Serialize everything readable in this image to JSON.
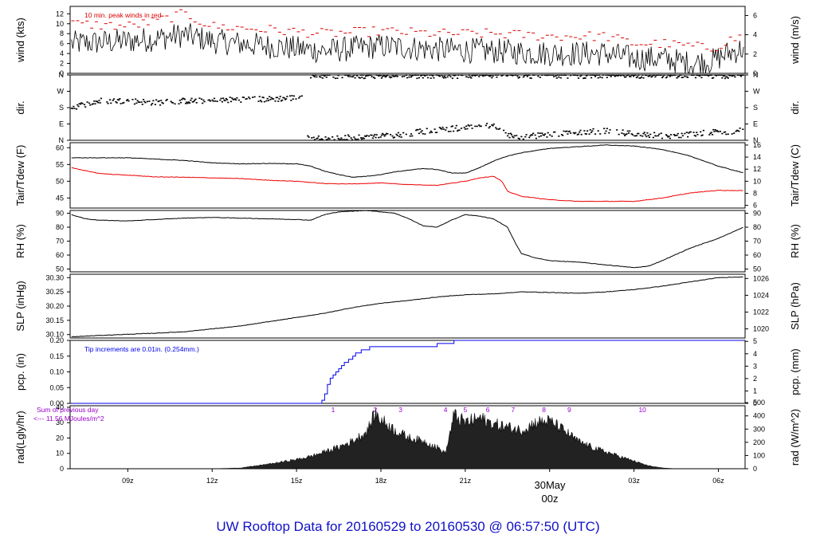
{
  "title": "UW Rooftop Data for 20160529  to  20160530 @ 06:57:50  (UTC)",
  "colors": {
    "title": "#1010c8",
    "peak": "#dd0000",
    "dew": "#ee0000",
    "precip": "#0000ee",
    "annotation": "#9900cc",
    "date": "#dd0000",
    "line": "#000000"
  },
  "chart_data": {
    "type": "line",
    "x_unit": "UTC hour",
    "x_range": [
      6.95,
      30.95
    ],
    "x_ticks": [
      {
        "x": 9,
        "label": "09z"
      },
      {
        "x": 12,
        "label": "12z"
      },
      {
        "x": 15,
        "label": "15z"
      },
      {
        "x": 18,
        "label": "18z"
      },
      {
        "x": 21,
        "label": "21z"
      },
      {
        "x": 24,
        "label": "30May"
      },
      {
        "x": 27,
        "label": "03z"
      },
      {
        "x": 30,
        "label": "06z"
      }
    ],
    "date_line1": "30May",
    "date_line2": "00z",
    "panels": [
      {
        "key": "wind",
        "left_label": "wind (kts)",
        "right_label": "wind (m/s)",
        "ylim": [
          0,
          13.5
        ],
        "left_ticks": [
          "0",
          "2",
          "4",
          "6",
          "8",
          "10",
          "12"
        ],
        "left_tick_values": [
          0,
          2,
          4,
          6,
          8,
          10,
          12
        ],
        "right_ticks": [
          "0",
          "2",
          "4",
          "6"
        ],
        "right_tick_values": [
          0,
          3.89,
          7.78,
          11.66
        ],
        "annotation": "10 min. peak winds in red",
        "series": [
          {
            "name": "wind speed",
            "kind": "noise",
            "x": [
              7,
              9,
              10,
              11,
              12,
              14,
              16,
              18,
              20,
              22,
              24,
              26,
              27,
              28,
              29,
              29.8,
              30.3,
              30.9
            ],
            "y": [
              6,
              6.5,
              7,
              7.8,
              6.5,
              5.5,
              4.5,
              5.5,
              4.8,
              4.5,
              4,
              4,
              3,
              3,
              2,
              2.5,
              4,
              5
            ]
          },
          {
            "name": "10 min peak",
            "kind": "peaks",
            "x": [
              7,
              9,
              10,
              11,
              12,
              14,
              16,
              18,
              20,
              22,
              24,
              26,
              27,
              28,
              29,
              29.8,
              30.3,
              30.9
            ],
            "y": [
              10,
              9.5,
              10.5,
              12,
              9.5,
              8.8,
              8,
              8.5,
              8,
              8,
              7.5,
              7.5,
              6,
              6,
              5.5,
              5,
              6.5,
              7.5
            ]
          }
        ]
      },
      {
        "key": "dir",
        "left_label": "dir.",
        "right_label": "dir.",
        "ylim": [
          0,
          4
        ],
        "left_ticks": [
          "N",
          "E",
          "S",
          "W",
          "N"
        ],
        "left_tick_values": [
          0,
          1,
          2,
          3,
          4
        ],
        "right_ticks": [
          "N",
          "E",
          "S",
          "W",
          "N"
        ],
        "right_tick_values": [
          0,
          1,
          2,
          3,
          4
        ],
        "series": [
          {
            "name": "direction",
            "kind": "dots",
            "x": [
              7,
              8,
              9,
              10,
              11,
              12,
              13,
              14,
              15,
              15.2,
              15.3,
              16,
              17,
              18,
              19,
              20,
              21,
              22,
              22.5,
              23,
              24,
              25,
              26,
              27,
              28,
              29,
              30,
              30.9
            ],
            "y": [
              2,
              2.4,
              2.4,
              2.3,
              2.4,
              2.4,
              2.5,
              2.5,
              2.6,
              2.7,
              3.95,
              3.95,
              3.95,
              3.95,
              3.95,
              3.95,
              3.95,
              3.95,
              3.95,
              3.95,
              3.95,
              3.95,
              3.95,
              3.95,
              3.95,
              3.95,
              3.95,
              3.95
            ],
            "lower_x": [
              15.4,
              16,
              17,
              18,
              19,
              20,
              21,
              22,
              22.5,
              23,
              24,
              25,
              26,
              27,
              28,
              29,
              30,
              30.9
            ],
            "lower_y": [
              0.1,
              0.1,
              0.15,
              0.25,
              0.4,
              0.65,
              0.75,
              0.95,
              0.3,
              0.2,
              0.3,
              0.5,
              0.55,
              0.4,
              0.25,
              0.35,
              0.5,
              0.6
            ]
          }
        ]
      },
      {
        "key": "temp",
        "left_label": "Tair/Tdew (F)",
        "right_label": "Tair/Tdew (C)",
        "ylim": [
          42,
          61.5
        ],
        "left_ticks": [
          "45",
          "50",
          "55",
          "60"
        ],
        "left_tick_values": [
          45,
          50,
          55,
          60
        ],
        "right_ticks": [
          "6",
          "8",
          "10",
          "12",
          "14",
          "16"
        ],
        "right_tick_values": [
          42.8,
          46.4,
          50,
          53.6,
          57.2,
          60.8
        ],
        "series": [
          {
            "name": "Tair",
            "color": "#000000",
            "x": [
              7,
              9,
              11,
              12,
              13,
              14,
              15,
              15.5,
              16,
              16.5,
              17,
              17.5,
              18,
              18.5,
              19,
              19.5,
              20,
              20.5,
              21,
              21.5,
              22,
              22.5,
              23,
              24,
              25,
              26,
              27,
              28,
              29,
              29.5,
              30,
              30.9
            ],
            "y": [
              57,
              57,
              56.2,
              55.5,
              55.2,
              55.3,
              55.2,
              54.5,
              53,
              52,
              51.2,
              51.5,
              52,
              52.8,
              53.3,
              53.8,
              53.5,
              52.5,
              52.4,
              54,
              56,
              57.5,
              58.5,
              59.8,
              60.3,
              60.8,
              60.5,
              59.5,
              57.5,
              56,
              54.5,
              52.5
            ]
          },
          {
            "name": "Tdew",
            "color": "#ee0000",
            "x": [
              7,
              8,
              9,
              10,
              11,
              12,
              13,
              14,
              15,
              16,
              17,
              18,
              19,
              20,
              21,
              21.5,
              22,
              22.3,
              22.5,
              23,
              24,
              25,
              26,
              27,
              28,
              29,
              30,
              30.9
            ],
            "y": [
              54,
              52.3,
              51.8,
              51.3,
              51.2,
              51,
              50.8,
              50.3,
              50,
              49.3,
              49.2,
              49.5,
              49,
              48.8,
              50,
              51,
              51.5,
              50,
              47,
              45.5,
              44.5,
              44,
              44,
              44,
              45,
              46.5,
              47.3,
              47.2
            ]
          }
        ]
      },
      {
        "key": "rh",
        "left_label": "RH (%)",
        "right_label": "RH (%)",
        "ylim": [
          48,
          92
        ],
        "left_ticks": [
          "50",
          "60",
          "70",
          "80",
          "90"
        ],
        "left_tick_values": [
          50,
          60,
          70,
          80,
          90
        ],
        "right_ticks": [
          "50",
          "60",
          "70",
          "80",
          "90"
        ],
        "right_tick_values": [
          50,
          60,
          70,
          80,
          90
        ],
        "series": [
          {
            "name": "RH",
            "color": "#000000",
            "x": [
              7,
              7.5,
              8,
              9,
              10,
              11,
              12,
              13,
              14,
              15,
              15.5,
              16,
              16.5,
              17,
              17.5,
              18,
              18.5,
              19,
              19.5,
              20,
              20.5,
              21,
              21.5,
              22,
              22.5,
              22.8,
              23,
              23.5,
              24,
              25,
              26,
              27,
              27.5,
              28,
              29,
              30,
              30.9
            ],
            "y": [
              89,
              86,
              85,
              84.5,
              85.5,
              86.5,
              87,
              86.5,
              86,
              85.5,
              85,
              89,
              91,
              91.5,
              92,
              91,
              90,
              86,
              81,
              80,
              85,
              89,
              88,
              86,
              80,
              68,
              61,
              58,
              56,
              55,
              53,
              51,
              52,
              56,
              65,
              72,
              80
            ]
          }
        ]
      },
      {
        "key": "slp",
        "left_label": "SLP (inHg)",
        "right_label": "SLP (hPa)",
        "ylim": [
          30.088,
          30.312
        ],
        "left_ticks": [
          "30.10",
          "30.15",
          "30.20",
          "30.25",
          "30.30"
        ],
        "left_tick_values": [
          30.1,
          30.15,
          30.2,
          30.25,
          30.3
        ],
        "right_ticks": [
          "1020",
          "1022",
          "1024",
          "1026"
        ],
        "right_tick_values": [
          30.12,
          30.179,
          30.238,
          30.297
        ],
        "series": [
          {
            "name": "SLP",
            "color": "#000000",
            "x": [
              7,
              8,
              9,
              10,
              11,
              12,
              13,
              14,
              15,
              16,
              17,
              18,
              19,
              20,
              21,
              22,
              23,
              24,
              25,
              26,
              27,
              28,
              29,
              30,
              30.9
            ],
            "y": [
              30.092,
              30.097,
              30.101,
              30.105,
              30.11,
              30.12,
              30.13,
              30.145,
              30.16,
              30.175,
              30.195,
              30.21,
              30.22,
              30.232,
              30.24,
              30.243,
              30.25,
              30.248,
              30.245,
              30.25,
              30.258,
              30.27,
              30.285,
              30.3,
              30.303
            ]
          }
        ]
      },
      {
        "key": "pcp",
        "left_label": "pcp. (in)",
        "right_label": "pcp. (mm)",
        "ylim": [
          0,
          0.2
        ],
        "left_ticks": [
          "0.00",
          "0.05",
          "0.10",
          "0.15",
          "0.20"
        ],
        "left_tick_values": [
          0,
          0.05,
          0.1,
          0.15,
          0.2
        ],
        "right_ticks": [
          "0",
          "1",
          "2",
          "3",
          "4",
          "5"
        ],
        "right_tick_values": [
          0,
          0.03937,
          0.07874,
          0.11811,
          0.15748,
          0.19685
        ],
        "annotation": "Tip increments are 0.01in. (0.254mm.)",
        "series": [
          {
            "name": "precip",
            "color": "#0000ee",
            "kind": "step",
            "x": [
              7,
              15.5,
              15.9,
              16.0,
              16.1,
              16.2,
              16.3,
              16.4,
              16.5,
              16.6,
              16.7,
              16.85,
              17.0,
              17.1,
              17.3,
              17.6,
              18.0,
              19.5,
              20.0,
              20.3,
              20.6,
              30.9
            ],
            "y": [
              0,
              0,
              0.01,
              0.03,
              0.06,
              0.08,
              0.09,
              0.1,
              0.11,
              0.12,
              0.13,
              0.14,
              0.15,
              0.16,
              0.17,
              0.18,
              0.18,
              0.18,
              0.19,
              0.19,
              0.2,
              0.2
            ]
          }
        ]
      },
      {
        "key": "rad",
        "left_label": "rad(Lgly/hr)",
        "right_label": "rad (W/m^2)",
        "ylim": [
          0,
          41
        ],
        "left_ticks": [
          "0",
          "10",
          "20",
          "30",
          "40"
        ],
        "left_tick_values": [
          0,
          10,
          20,
          30,
          40
        ],
        "right_ticks": [
          "0",
          "100",
          "200",
          "300",
          "400",
          "500"
        ],
        "right_tick_values": [
          0,
          8.6,
          17.2,
          25.8,
          34.4,
          43
        ],
        "annotation_line1": "Sum of previous day",
        "annotation_line2": "<--- 11.56 MJoules/m^2",
        "markers": [
          {
            "x": 16.3,
            "label": "1"
          },
          {
            "x": 17.8,
            "label": "2"
          },
          {
            "x": 18.7,
            "label": "3"
          },
          {
            "x": 20.3,
            "label": "4"
          },
          {
            "x": 21.0,
            "label": "5"
          },
          {
            "x": 21.8,
            "label": "6"
          },
          {
            "x": 22.7,
            "label": "7"
          },
          {
            "x": 23.8,
            "label": "8"
          },
          {
            "x": 24.7,
            "label": "9"
          },
          {
            "x": 27.3,
            "label": "10"
          }
        ],
        "series": [
          {
            "name": "radiation",
            "color": "#000000",
            "kind": "area",
            "x": [
              12,
              13,
              14,
              15,
              15.5,
              16,
              16.5,
              17,
              17.5,
              17.8,
              18,
              18.5,
              19,
              19.5,
              20,
              20.3,
              20.6,
              21,
              21.5,
              22,
              22.5,
              23,
              23.5,
              24,
              24.5,
              25,
              25.5,
              26,
              26.5,
              27,
              27.5,
              28,
              28.5
            ],
            "y": [
              0,
              0.5,
              3,
              6,
              8,
              11,
              14,
              18,
              24,
              36,
              32,
              25,
              20,
              18,
              14,
              10,
              35,
              30,
              33,
              29,
              27,
              25,
              30,
              31,
              25,
              18,
              14,
              11,
              8,
              5,
              2,
              0.5,
              0
            ]
          }
        ]
      }
    ]
  }
}
